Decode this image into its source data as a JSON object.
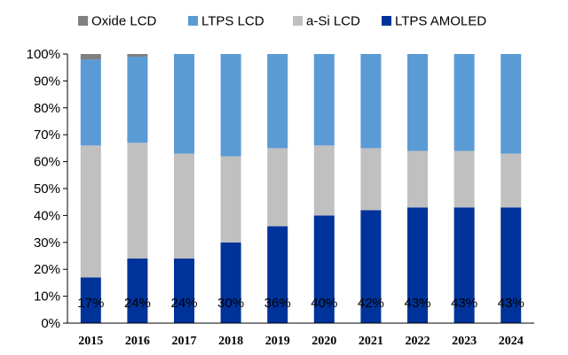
{
  "chart_data": {
    "type": "bar",
    "stacked": true,
    "percent": true,
    "categories": [
      "2015",
      "2016",
      "2017",
      "2018",
      "2019",
      "2020",
      "2021",
      "2022",
      "2023",
      "2024"
    ],
    "series": [
      {
        "name": "LTPS AMOLED",
        "color": "#003399",
        "values": [
          17,
          24,
          24,
          30,
          36,
          40,
          42,
          43,
          43,
          43
        ]
      },
      {
        "name": "a-Si LCD",
        "color": "#C0C0C0",
        "values": [
          49,
          43,
          39,
          32,
          29,
          26,
          23,
          21,
          21,
          20
        ]
      },
      {
        "name": "LTPS LCD",
        "color": "#5B9BD5",
        "values": [
          32,
          32,
          37,
          38,
          35,
          34,
          35,
          36,
          36,
          37
        ]
      },
      {
        "name": "Oxide LCD",
        "color": "#808080",
        "values": [
          2,
          1,
          0,
          0,
          0,
          0,
          0,
          0,
          0,
          0
        ]
      }
    ],
    "legend_order": [
      "Oxide LCD",
      "LTPS LCD",
      "a-Si LCD",
      "LTPS AMOLED"
    ],
    "data_labels": [
      "17%",
      "24%",
      "24%",
      "30%",
      "36%",
      "40%",
      "42%",
      "43%",
      "43%",
      "43%"
    ],
    "y_ticks": [
      "0%",
      "10%",
      "20%",
      "30%",
      "40%",
      "50%",
      "60%",
      "70%",
      "80%",
      "90%",
      "100%"
    ],
    "ylim": [
      0,
      100
    ],
    "title": "",
    "xlabel": "",
    "ylabel": "",
    "legend_position": "top",
    "grid": false
  }
}
